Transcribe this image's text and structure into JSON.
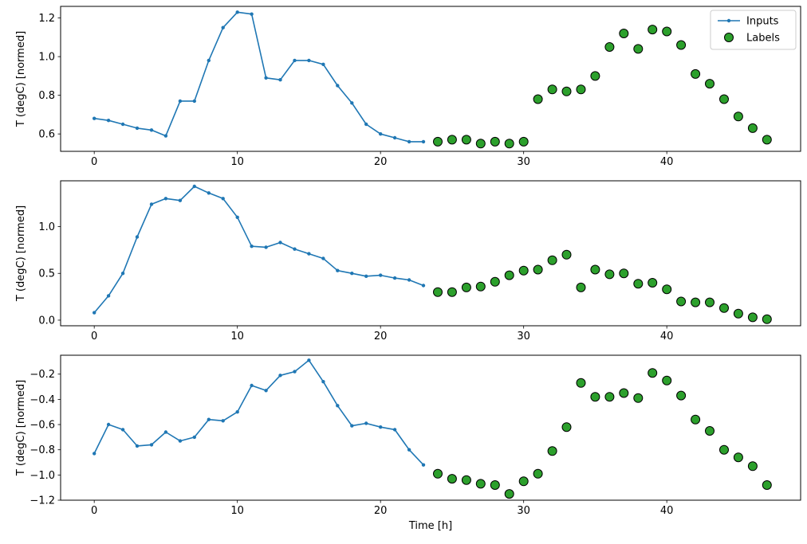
{
  "figure": {
    "background": "#ffffff"
  },
  "legend": {
    "position": "top-right",
    "items": [
      {
        "label": "Inputs",
        "marker": "line-dot",
        "color": "#1f77b4"
      },
      {
        "label": "Labels",
        "marker": "circle",
        "color": "#2ca02c",
        "edge_color": "#000000"
      }
    ]
  },
  "chart_data": [
    {
      "type": "line+scatter",
      "title": "",
      "xlabel": "",
      "ylabel": "T (degC) [normed]",
      "xlim": [
        -2.35,
        49.35
      ],
      "ylim": [
        0.51,
        1.26
      ],
      "grid": false,
      "xtick_values": [
        0,
        10,
        20,
        30,
        40
      ],
      "xtick_labels": [
        "0",
        "10",
        "20",
        "30",
        "40"
      ],
      "ytick_values": [
        0.6,
        0.8,
        1.0,
        1.2
      ],
      "ytick_labels": [
        "0.6",
        "0.8",
        "1.0",
        "1.2"
      ],
      "series": [
        {
          "name": "Inputs",
          "type": "line",
          "marker": "dot",
          "color": "#1f77b4",
          "x": [
            0,
            1,
            2,
            3,
            4,
            5,
            6,
            7,
            8,
            9,
            10,
            11,
            12,
            13,
            14,
            15,
            16,
            17,
            18,
            19,
            20,
            21,
            22,
            23
          ],
          "y": [
            0.68,
            0.67,
            0.65,
            0.63,
            0.62,
            0.59,
            0.77,
            0.77,
            0.98,
            1.15,
            1.23,
            1.22,
            0.89,
            0.88,
            0.98,
            0.98,
            0.96,
            0.85,
            0.76,
            0.65,
            0.6,
            0.58,
            0.56,
            0.56
          ]
        },
        {
          "name": "Labels",
          "type": "scatter",
          "marker": "circle",
          "color": "#2ca02c",
          "edge_color": "#000000",
          "x": [
            24,
            25,
            26,
            27,
            28,
            29,
            30,
            31,
            32,
            33,
            34,
            35,
            36,
            37,
            38,
            39,
            40,
            41,
            42,
            43,
            44,
            45,
            46,
            47
          ],
          "y": [
            0.56,
            0.57,
            0.57,
            0.55,
            0.56,
            0.55,
            0.56,
            0.78,
            0.83,
            0.82,
            0.83,
            0.9,
            1.05,
            1.12,
            1.04,
            1.14,
            1.13,
            1.06,
            0.91,
            0.86,
            0.78,
            0.69,
            0.63,
            0.57
          ]
        }
      ]
    },
    {
      "type": "line+scatter",
      "title": "",
      "xlabel": "",
      "ylabel": "T (degC) [normed]",
      "xlim": [
        -2.35,
        49.35
      ],
      "ylim": [
        -0.06,
        1.49
      ],
      "grid": false,
      "xtick_values": [
        0,
        10,
        20,
        30,
        40
      ],
      "xtick_labels": [
        "0",
        "10",
        "20",
        "30",
        "40"
      ],
      "ytick_values": [
        0.0,
        0.5,
        1.0
      ],
      "ytick_labels": [
        "0.0",
        "0.5",
        "1.0"
      ],
      "series": [
        {
          "name": "Inputs",
          "type": "line",
          "marker": "dot",
          "color": "#1f77b4",
          "x": [
            0,
            1,
            2,
            3,
            4,
            5,
            6,
            7,
            8,
            9,
            10,
            11,
            12,
            13,
            14,
            15,
            16,
            17,
            18,
            19,
            20,
            21,
            22,
            23
          ],
          "y": [
            0.08,
            0.26,
            0.5,
            0.89,
            1.24,
            1.3,
            1.28,
            1.43,
            1.36,
            1.3,
            1.1,
            0.79,
            0.78,
            0.83,
            0.76,
            0.71,
            0.66,
            0.53,
            0.5,
            0.47,
            0.48,
            0.45,
            0.43,
            0.37
          ]
        },
        {
          "name": "Labels",
          "type": "scatter",
          "marker": "circle",
          "color": "#2ca02c",
          "edge_color": "#000000",
          "x": [
            24,
            25,
            26,
            27,
            28,
            29,
            30,
            31,
            32,
            33,
            34,
            35,
            36,
            37,
            38,
            39,
            40,
            41,
            42,
            43,
            44,
            45,
            46,
            47
          ],
          "y": [
            0.3,
            0.3,
            0.35,
            0.36,
            0.41,
            0.48,
            0.53,
            0.54,
            0.64,
            0.7,
            0.35,
            0.54,
            0.49,
            0.5,
            0.39,
            0.4,
            0.33,
            0.2,
            0.19,
            0.19,
            0.13,
            0.07,
            0.03,
            0.01
          ]
        }
      ]
    },
    {
      "type": "line+scatter",
      "title": "",
      "xlabel": "Time [h]",
      "ylabel": "T (degC) [normed]",
      "xlim": [
        -2.35,
        49.35
      ],
      "ylim": [
        -1.2,
        -0.05
      ],
      "grid": false,
      "xtick_values": [
        0,
        10,
        20,
        30,
        40
      ],
      "xtick_labels": [
        "0",
        "10",
        "20",
        "30",
        "40"
      ],
      "ytick_values": [
        -0.2,
        -0.4,
        -0.6,
        -0.8,
        -1.0,
        -1.2
      ],
      "ytick_labels": [
        "−0.2",
        "−0.4",
        "−0.6",
        "−0.8",
        "−1.0",
        "−1.2"
      ],
      "series": [
        {
          "name": "Inputs",
          "type": "line",
          "marker": "dot",
          "color": "#1f77b4",
          "x": [
            0,
            1,
            2,
            3,
            4,
            5,
            6,
            7,
            8,
            9,
            10,
            11,
            12,
            13,
            14,
            15,
            16,
            17,
            18,
            19,
            20,
            21,
            22,
            23
          ],
          "y": [
            -0.83,
            -0.6,
            -0.64,
            -0.77,
            -0.76,
            -0.66,
            -0.73,
            -0.7,
            -0.56,
            -0.57,
            -0.5,
            -0.29,
            -0.33,
            -0.21,
            -0.18,
            -0.09,
            -0.26,
            -0.45,
            -0.61,
            -0.59,
            -0.62,
            -0.64,
            -0.8,
            -0.92
          ]
        },
        {
          "name": "Labels",
          "type": "scatter",
          "marker": "circle",
          "color": "#2ca02c",
          "edge_color": "#000000",
          "x": [
            24,
            25,
            26,
            27,
            28,
            29,
            30,
            31,
            32,
            33,
            34,
            35,
            36,
            37,
            38,
            39,
            40,
            41,
            42,
            43,
            44,
            45,
            46,
            47
          ],
          "y": [
            -0.99,
            -1.03,
            -1.04,
            -1.07,
            -1.08,
            -1.15,
            -1.05,
            -0.99,
            -0.81,
            -0.62,
            -0.27,
            -0.38,
            -0.38,
            -0.35,
            -0.39,
            -0.19,
            -0.25,
            -0.37,
            -0.56,
            -0.65,
            -0.8,
            -0.86,
            -0.93,
            -1.08
          ]
        }
      ]
    }
  ]
}
